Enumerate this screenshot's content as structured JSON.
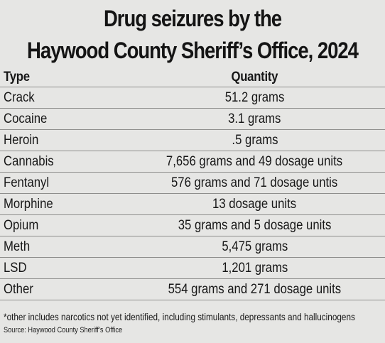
{
  "title_line1": "Drug seizures by the",
  "title_line2": "Haywood County Sheriff’s Office, 2024",
  "table": {
    "headers": {
      "type": "Type",
      "quantity": "Quantity"
    },
    "rows": [
      {
        "type": "Crack",
        "quantity": "51.2 grams"
      },
      {
        "type": "Cocaine",
        "quantity": "3.1 grams"
      },
      {
        "type": "Heroin",
        "quantity": ".5 grams"
      },
      {
        "type": "Cannabis",
        "quantity": "7,656 grams and 49 dosage units"
      },
      {
        "type": "Fentanyl",
        "quantity": "576 grams and 71 dosage untis"
      },
      {
        "type": "Morphine",
        "quantity": "13 dosage units"
      },
      {
        "type": "Opium",
        "quantity": "35 grams and 5 dosage units"
      },
      {
        "type": "Meth",
        "quantity": "5,475 grams"
      },
      {
        "type": "LSD",
        "quantity": "1,201 grams"
      },
      {
        "type": "Other",
        "quantity": "554 grams and 271 dosage units"
      }
    ]
  },
  "footnote": "*other includes narcotics not yet identified, including stimulants, depressants and hallucinogens",
  "source": "Source: Haywood County Sheriff’s Office"
}
